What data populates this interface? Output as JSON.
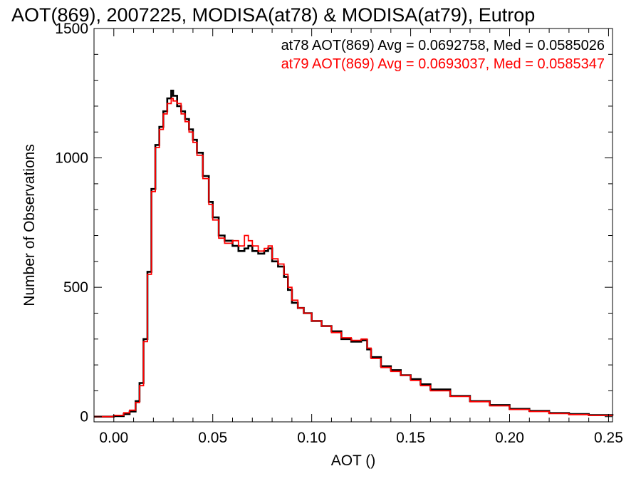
{
  "chart_data": {
    "type": "line",
    "title": "AOT(869), 2007225, MODISA(at78) & MODISA(at79), Eutrop",
    "xlabel": "AOT ()",
    "ylabel": "Number of Observations",
    "xlim": [
      -0.01,
      0.252
    ],
    "ylim": [
      -20,
      1500
    ],
    "x_ticks": [
      0.0,
      0.05,
      0.1,
      0.15,
      0.2,
      0.25
    ],
    "x_tick_labels": [
      "0.00",
      "0.05",
      "0.10",
      "0.15",
      "0.20",
      "0.25"
    ],
    "y_ticks": [
      0,
      500,
      1000,
      1500
    ],
    "y_tick_labels": [
      "0",
      "500",
      "1000",
      "1500"
    ],
    "grid": false,
    "step": true,
    "annotations": [
      {
        "text": "at78 AOT(869) Avg = 0.0692758, Med = 0.0585026",
        "color": "#000000"
      },
      {
        "text": "at79 AOT(869) Avg = 0.0693037, Med = 0.0585347",
        "color": "#ff0000"
      }
    ],
    "series": [
      {
        "color": "#000000",
        "x": [
          -0.01,
          0.0,
          0.005,
          0.008,
          0.011,
          0.013,
          0.015,
          0.017,
          0.019,
          0.021,
          0.023,
          0.025,
          0.027,
          0.029,
          0.03,
          0.032,
          0.034,
          0.036,
          0.038,
          0.04,
          0.042,
          0.045,
          0.048,
          0.05,
          0.053,
          0.056,
          0.06,
          0.063,
          0.066,
          0.068,
          0.07,
          0.073,
          0.076,
          0.078,
          0.08,
          0.083,
          0.086,
          0.088,
          0.09,
          0.093,
          0.096,
          0.1,
          0.105,
          0.11,
          0.115,
          0.12,
          0.125,
          0.128,
          0.13,
          0.135,
          0.14,
          0.145,
          0.15,
          0.155,
          0.16,
          0.17,
          0.18,
          0.19,
          0.2,
          0.21,
          0.22,
          0.23,
          0.24,
          0.252
        ],
        "y": [
          0,
          2,
          10,
          20,
          60,
          130,
          300,
          560,
          880,
          1050,
          1120,
          1180,
          1230,
          1260,
          1240,
          1200,
          1180,
          1150,
          1110,
          1070,
          1020,
          930,
          830,
          770,
          700,
          680,
          660,
          640,
          650,
          660,
          640,
          630,
          640,
          650,
          600,
          580,
          540,
          490,
          440,
          420,
          400,
          370,
          350,
          330,
          300,
          290,
          295,
          260,
          230,
          195,
          180,
          160,
          145,
          125,
          105,
          80,
          60,
          45,
          30,
          22,
          14,
          10,
          6,
          4
        ]
      },
      {
        "color": "#ff0000",
        "x": [
          -0.01,
          0.0,
          0.005,
          0.008,
          0.011,
          0.013,
          0.015,
          0.017,
          0.019,
          0.021,
          0.023,
          0.025,
          0.027,
          0.029,
          0.03,
          0.032,
          0.034,
          0.036,
          0.038,
          0.04,
          0.042,
          0.045,
          0.048,
          0.05,
          0.053,
          0.056,
          0.06,
          0.063,
          0.066,
          0.068,
          0.07,
          0.073,
          0.076,
          0.078,
          0.08,
          0.083,
          0.086,
          0.088,
          0.09,
          0.093,
          0.096,
          0.1,
          0.105,
          0.11,
          0.115,
          0.12,
          0.125,
          0.128,
          0.13,
          0.135,
          0.14,
          0.145,
          0.15,
          0.155,
          0.16,
          0.17,
          0.18,
          0.19,
          0.2,
          0.21,
          0.22,
          0.23,
          0.24,
          0.252
        ],
        "y": [
          0,
          5,
          15,
          25,
          55,
          120,
          290,
          550,
          870,
          1040,
          1110,
          1170,
          1210,
          1230,
          1220,
          1210,
          1170,
          1140,
          1100,
          1060,
          1010,
          920,
          820,
          760,
          690,
          670,
          680,
          660,
          700,
          680,
          660,
          640,
          650,
          660,
          610,
          590,
          550,
          500,
          450,
          420,
          400,
          370,
          350,
          325,
          305,
          295,
          300,
          265,
          225,
          190,
          175,
          160,
          140,
          120,
          100,
          78,
          58,
          42,
          28,
          20,
          12,
          8,
          5,
          3
        ]
      }
    ]
  }
}
